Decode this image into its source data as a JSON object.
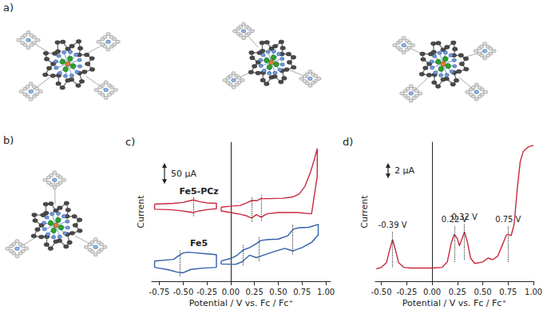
{
  "structure_panels": [
    "a)",
    "b)"
  ],
  "chart_data": [
    {
      "type": "line",
      "title": "c)",
      "xlabel": "Potential / V vs. Fc / Fc⁺",
      "ylabel": "Current",
      "xlim": [
        -0.83,
        1.05
      ],
      "xticks": [
        -0.75,
        {
          "value": -0.5,
          "label": "-0.50"
        },
        -0.25,
        {
          "value": 0,
          "label": "0.00"
        },
        0.25,
        {
          "value": 0.5,
          "label": "0.50"
        },
        0.75,
        {
          "value": 1,
          "label": "1.00"
        }
      ],
      "ylim": [
        0,
        330
      ],
      "tick_labels": "x",
      "grid": false,
      "scale_bar": {
        "value": 50,
        "label": "50 µA"
      },
      "series": [
        {
          "name": "Fe5-PCz",
          "color": "#c8283a",
          "x": [
            -0.8,
            -0.7,
            -0.6,
            -0.5,
            -0.43,
            -0.39,
            -0.33,
            -0.25,
            -0.15,
            -0.15,
            -0.25,
            -0.33,
            -0.4,
            -0.45,
            -0.55,
            -0.65,
            -0.8,
            -0.8,
            -0.12,
            -0.1,
            0,
            0.1,
            0.17,
            0.22,
            0.27,
            0.32,
            0.4,
            0.55,
            0.65,
            0.72,
            0.78,
            0.84,
            0.88,
            0.91,
            0.91,
            0.85,
            0.7,
            0.5,
            0.38,
            0.32,
            0.27,
            0.22,
            0.17,
            0.1,
            0,
            -0.1,
            -0.1
          ],
          "values": [
            183,
            184,
            185,
            187,
            191,
            193,
            189,
            186,
            185,
            172,
            170,
            167,
            163,
            165,
            168,
            170,
            171,
            183,
            null,
            176,
            178,
            180,
            186,
            192,
            191,
            196,
            196,
            197,
            200,
            207,
            225,
            260,
            290,
            315,
            250,
            160,
            163,
            163,
            160,
            152,
            158,
            150,
            155,
            159,
            163,
            167,
            176
          ],
          "peaks": [
            -0.39,
            0.22,
            0.32
          ]
        },
        {
          "name": "Fe5",
          "color": "#2f5fa8",
          "x": [
            -0.8,
            -0.7,
            -0.6,
            -0.55,
            -0.5,
            -0.45,
            -0.35,
            -0.25,
            -0.15,
            -0.15,
            -0.3,
            -0.42,
            -0.5,
            -0.57,
            -0.65,
            -0.75,
            -0.8,
            -0.8,
            -0.12,
            -0.1,
            0,
            0.07,
            0.13,
            0.2,
            0.26,
            0.32,
            0.4,
            0.5,
            0.6,
            0.66,
            0.72,
            0.82,
            0.92,
            0.92,
            0.85,
            0.75,
            0.65,
            0.57,
            0.45,
            0.32,
            0.27,
            0.2,
            0.12,
            0.05,
            -0.1,
            -0.1
          ],
          "values": [
            48,
            50,
            52,
            60,
            67,
            69,
            67,
            65,
            63,
            33,
            31,
            28,
            20,
            22,
            27,
            31,
            33,
            48,
            null,
            48,
            54,
            62,
            74,
            80,
            88,
            97,
            99,
            100,
            108,
            124,
            127,
            128,
            135,
            110,
            92,
            80,
            72,
            78,
            70,
            60,
            56,
            62,
            46,
            40,
            41,
            48
          ],
          "peaks": [
            -0.53,
            0.13,
            0.3,
            0.65
          ]
        }
      ]
    },
    {
      "type": "line",
      "title": "d)",
      "xlabel": "Potential / V vs. Fc / Fc⁺",
      "ylabel": "Current",
      "xlim": [
        -0.56,
        1.0
      ],
      "xticks": [
        {
          "value": -0.5,
          "label": "-0.50"
        },
        -0.25,
        {
          "value": 0,
          "label": "0.00"
        },
        0.25,
        {
          "value": 0.5,
          "label": "0.50"
        },
        0.75,
        {
          "value": 1,
          "label": "1.00"
        }
      ],
      "ylim": [
        0,
        18
      ],
      "tick_labels": "x",
      "grid": false,
      "scale_bar": {
        "value": 2,
        "label": "2 µA"
      },
      "color": "#c8283a",
      "x": [
        -0.55,
        -0.5,
        -0.45,
        -0.42,
        -0.39,
        -0.36,
        -0.33,
        -0.28,
        -0.2,
        -0.1,
        0,
        0.1,
        0.15,
        0.19,
        0.22,
        0.25,
        0.27,
        0.29,
        0.32,
        0.35,
        0.38,
        0.42,
        0.5,
        0.55,
        0.6,
        0.65,
        0.7,
        0.73,
        0.75,
        0.78,
        0.81,
        0.84,
        0.87,
        0.9,
        0.95,
        1.0
      ],
      "values": [
        1.6,
        1.8,
        2.4,
        4.0,
        5.4,
        4.0,
        2.4,
        1.8,
        1.7,
        1.7,
        1.7,
        1.8,
        2.5,
        5.0,
        6.1,
        5.5,
        4.6,
        5.3,
        6.4,
        5.0,
        3.0,
        2.3,
        2.5,
        3.0,
        2.8,
        3.3,
        4.9,
        5.9,
        6.1,
        5.9,
        7.4,
        11.9,
        15.5,
        16.8,
        17.4,
        17.6
      ],
      "annotations": [
        {
          "x": -0.39,
          "label": "-0.39 V"
        },
        {
          "x": 0.22,
          "label": "0.22 V"
        },
        {
          "x": 0.32,
          "label": "0.32 V"
        },
        {
          "x": 0.75,
          "label": "0.75 V"
        }
      ]
    }
  ]
}
